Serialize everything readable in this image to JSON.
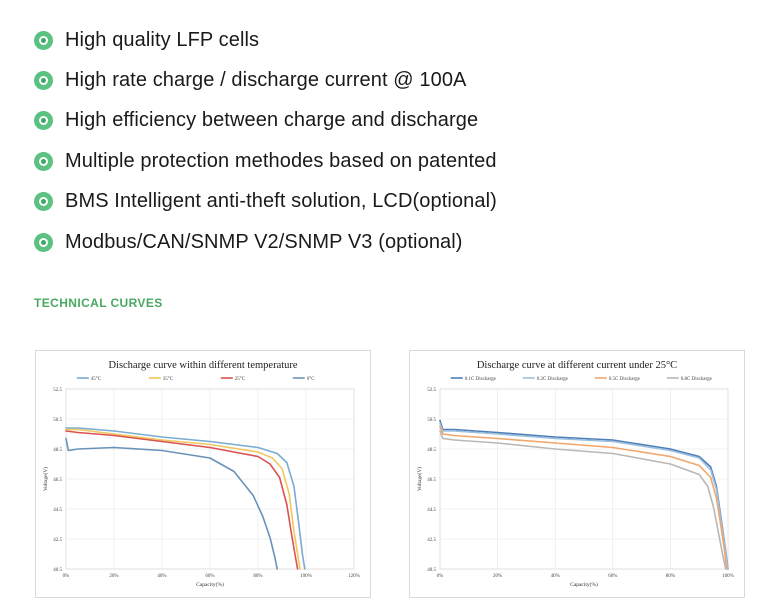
{
  "features": [
    "High quality LFP cells",
    "High rate charge / discharge current @ 100A",
    "High efficiency between charge and discharge",
    "Multiple protection methodes based on patented",
    "BMS Intelligent anti-theft solution, LCD(optional)",
    "Modbus/CAN/SNMP V2/SNMP V3 (optional)"
  ],
  "section_title": "TECHNICAL CURVES",
  "colors": {
    "accent": "#4aa862",
    "bullet": "#5cc282"
  },
  "chart_data": [
    {
      "type": "line",
      "title": "Discharge curve within different temperature",
      "xlabel": "Capacity(%)",
      "ylabel": "Voltage(V)",
      "xlim": [
        0,
        120
      ],
      "ylim": [
        40.5,
        52.5
      ],
      "xticks": [
        "0%",
        "20%",
        "40%",
        "60%",
        "80%",
        "100%",
        "120%"
      ],
      "yticks": [
        "52.5",
        "50.5",
        "48.5",
        "46.5",
        "44.5",
        "42.5",
        "40.5"
      ],
      "grid": true,
      "legend": "top",
      "series": [
        {
          "name": "45°C",
          "color": "#7aabd0",
          "x": [
            0,
            5,
            20,
            40,
            60,
            80,
            88,
            92,
            95,
            97,
            98.5,
            99.5
          ],
          "y": [
            49.9,
            49.9,
            49.7,
            49.3,
            49.0,
            48.6,
            48.2,
            47.6,
            46.0,
            43.5,
            41.5,
            40.5
          ]
        },
        {
          "name": "35°C",
          "color": "#f0c75e",
          "x": [
            0,
            5,
            20,
            40,
            60,
            80,
            86,
            90,
            93,
            95,
            96.5,
            97.5
          ],
          "y": [
            49.8,
            49.8,
            49.5,
            49.1,
            48.8,
            48.3,
            47.9,
            47.2,
            45.5,
            43.0,
            41.5,
            40.5
          ]
        },
        {
          "name": "25°C",
          "color": "#d9534f",
          "x": [
            0,
            5,
            20,
            40,
            60,
            80,
            85,
            89,
            92,
            94,
            95.5,
            96.5
          ],
          "y": [
            49.7,
            49.6,
            49.4,
            49.0,
            48.6,
            48.0,
            47.5,
            46.6,
            44.8,
            42.8,
            41.4,
            40.5
          ]
        },
        {
          "name": "0°C",
          "color": "#6a92b8",
          "x": [
            0,
            1,
            5,
            20,
            40,
            60,
            70,
            78,
            82,
            85,
            87,
            88
          ],
          "y": [
            49.2,
            48.4,
            48.5,
            48.6,
            48.4,
            47.9,
            47.0,
            45.4,
            44.0,
            42.6,
            41.3,
            40.5
          ]
        }
      ]
    },
    {
      "type": "line",
      "title": "Discharge curve at different current under 25°C",
      "xlabel": "Capacity(%)",
      "ylabel": "Voltage(V)",
      "xlim": [
        0,
        100
      ],
      "ylim": [
        40.5,
        52.5
      ],
      "xticks": [
        "0%",
        "20%",
        "40%",
        "60%",
        "80%",
        "100%"
      ],
      "yticks": [
        "52.5",
        "50.5",
        "48.5",
        "46.5",
        "44.5",
        "42.5",
        "40.5"
      ],
      "grid": true,
      "legend": "top",
      "series": [
        {
          "name": "0.1C Discharge",
          "color": "#4f7fb8",
          "x": [
            0,
            1,
            5,
            20,
            40,
            60,
            80,
            90,
            94,
            96,
            97.5,
            99,
            100
          ],
          "y": [
            50.4,
            49.8,
            49.8,
            49.6,
            49.3,
            49.1,
            48.5,
            48.0,
            47.3,
            46.0,
            44.0,
            42.0,
            40.5
          ]
        },
        {
          "name": "0.2C Discharge",
          "color": "#9dbfdf",
          "x": [
            0,
            1,
            5,
            20,
            40,
            60,
            80,
            90,
            94,
            96,
            97.5,
            99,
            100
          ],
          "y": [
            50.2,
            49.7,
            49.7,
            49.5,
            49.2,
            49.0,
            48.4,
            47.9,
            47.1,
            45.8,
            43.8,
            41.9,
            40.5
          ]
        },
        {
          "name": "0.5C Discharge",
          "color": "#f2a66a",
          "x": [
            0,
            1,
            5,
            20,
            40,
            60,
            80,
            90,
            94,
            96,
            97.5,
            98.8,
            99.6
          ],
          "y": [
            50.0,
            49.5,
            49.4,
            49.2,
            48.9,
            48.6,
            48.0,
            47.4,
            46.6,
            45.2,
            43.4,
            41.7,
            40.5
          ]
        },
        {
          "name": "0.8C Discharge",
          "color": "#b8b8b8",
          "x": [
            0,
            1,
            5,
            20,
            40,
            60,
            80,
            90,
            93,
            95,
            96.8,
            98.2,
            99.2
          ],
          "y": [
            49.7,
            49.2,
            49.1,
            48.9,
            48.5,
            48.2,
            47.5,
            46.8,
            46.0,
            44.6,
            42.8,
            41.4,
            40.5
          ]
        }
      ]
    }
  ]
}
